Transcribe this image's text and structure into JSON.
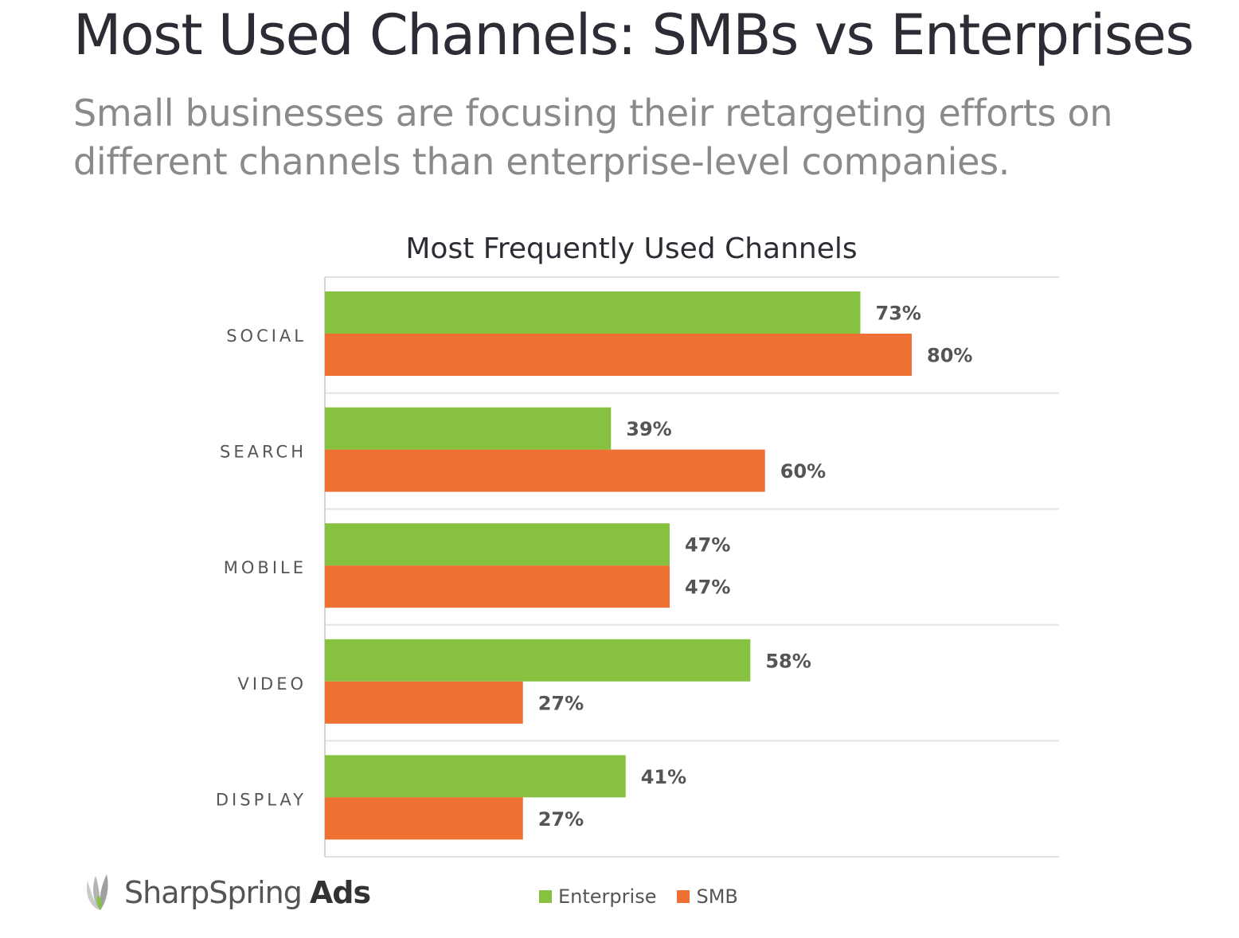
{
  "header": {
    "title": "Most Used Channels: SMBs vs Enterprises",
    "subtitle": "Small businesses are focusing their retargeting efforts on different channels than enterprise-level companies."
  },
  "brand": {
    "name_regular": "SharpSpring",
    "name_bold": "Ads",
    "logo_icon": "sharpspring-leaf-logo-icon"
  },
  "chart_data": {
    "type": "bar",
    "orientation": "horizontal",
    "title": "Most Frequently Used Channels",
    "categories": [
      "SOCIAL",
      "SEARCH",
      "MOBILE",
      "VIDEO",
      "DISPLAY"
    ],
    "series": [
      {
        "name": "Enterprise",
        "color": "#86c240",
        "values": [
          73,
          39,
          47,
          58,
          41
        ],
        "labels": [
          "73%",
          "39%",
          "47%",
          "58%",
          "41%"
        ]
      },
      {
        "name": "SMB",
        "color": "#ef7033",
        "values": [
          80,
          60,
          47,
          27,
          27
        ],
        "labels": [
          "80%",
          "60%",
          "47%",
          "27%",
          "27%"
        ]
      }
    ],
    "xlabel": "",
    "ylabel": "",
    "xlim": [
      0,
      100
    ],
    "grid": true,
    "legend": "bottom"
  }
}
